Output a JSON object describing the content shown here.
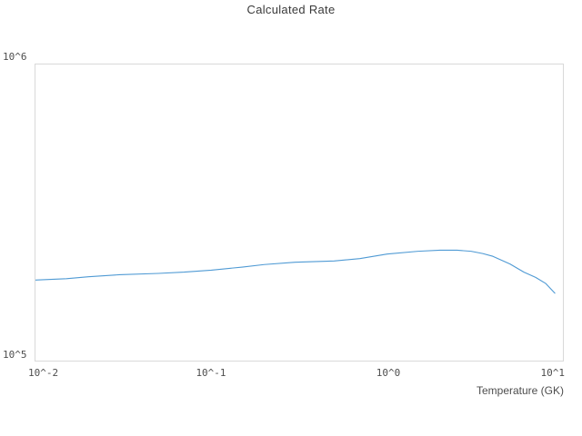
{
  "title": "Calculated Rate",
  "x_axis": {
    "label": "Temperature (GK)",
    "tick_labels": [
      "10^-2",
      "10^-1",
      "10^0",
      "10^1"
    ]
  },
  "y_axis": {
    "tick_labels": [
      "10^5",
      "10^6"
    ]
  },
  "colors": {
    "line": "#4f9ad4",
    "plot_border": "#d9d9d9",
    "title_text": "#3a3a3a",
    "tick_text": "#4d4d4d"
  },
  "chart_data": {
    "type": "line",
    "title": "Calculated Rate",
    "xlabel": "Temperature (GK)",
    "ylabel": "",
    "x_scale": "log",
    "y_scale": "log",
    "xlim": [
      0.01,
      10
    ],
    "ylim": [
      100000,
      1000000
    ],
    "xtick_labels": [
      "10^-2",
      "10^-1",
      "10^0",
      "10^1"
    ],
    "ytick_labels": [
      "10^5",
      "10^6"
    ],
    "grid": false,
    "legend": "none",
    "series": [
      {
        "name": "Calculated Rate",
        "x": [
          0.01,
          0.015,
          0.02,
          0.03,
          0.05,
          0.07,
          0.1,
          0.15,
          0.2,
          0.3,
          0.5,
          0.7,
          1.0,
          1.5,
          2.0,
          2.5,
          3.0,
          3.5,
          4.0,
          5.0,
          6.0,
          7.0,
          8.0,
          9.0
        ],
        "y": [
          187000,
          189000,
          192000,
          195000,
          197000,
          199000,
          202000,
          207000,
          211000,
          215000,
          217000,
          221000,
          229000,
          234000,
          236000,
          236000,
          234000,
          230000,
          225000,
          212000,
          199000,
          191000,
          182000,
          169000
        ]
      }
    ]
  }
}
